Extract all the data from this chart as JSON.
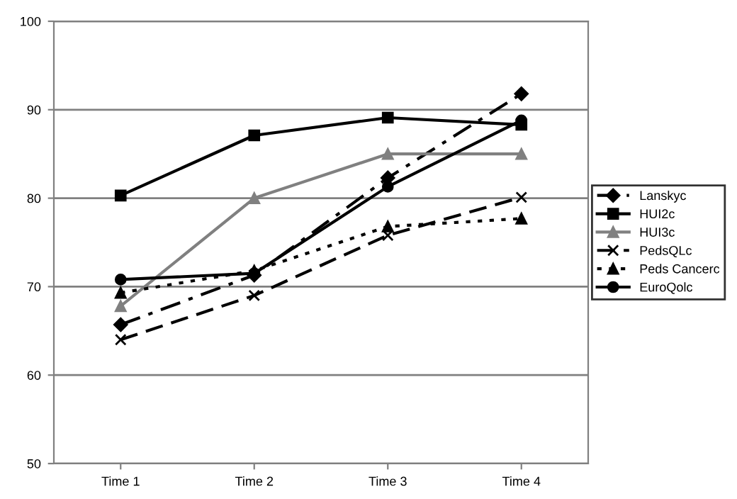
{
  "chart_data": {
    "type": "line",
    "categories": [
      "Time 1",
      "Time 2",
      "Time 3",
      "Time 4"
    ],
    "series": [
      {
        "name": "Lanskyc",
        "color": "#000000",
        "marker": "diamond",
        "line_style": "dashdot",
        "values": [
          65.7,
          71.3,
          82.3,
          91.8
        ]
      },
      {
        "name": "HUI2c",
        "color": "#000000",
        "marker": "square",
        "line_style": "solid",
        "values": [
          80.3,
          87.1,
          89.1,
          88.3
        ]
      },
      {
        "name": "HUI3c",
        "color": "#808080",
        "marker": "triangle",
        "line_style": "solid",
        "values": [
          67.8,
          80,
          85,
          85
        ]
      },
      {
        "name": "PedsQLc",
        "color": "#000000",
        "marker": "cross",
        "line_style": "dashed",
        "values": [
          64,
          69,
          75.8,
          80.1
        ]
      },
      {
        "name": "Peds Cancerc",
        "color": "#000000",
        "marker": "triangle",
        "line_style": "dotted",
        "values": [
          69.3,
          71.8,
          76.8,
          77.7
        ]
      },
      {
        "name": "EuroQolc",
        "color": "#000000",
        "marker": "circle",
        "line_style": "solid",
        "values": [
          70.8,
          71.5,
          81.3,
          88.8
        ]
      }
    ],
    "ylim": [
      50,
      100
    ],
    "yticks": [
      50,
      60,
      70,
      80,
      90,
      100
    ],
    "grid": "y",
    "legend": "right"
  }
}
